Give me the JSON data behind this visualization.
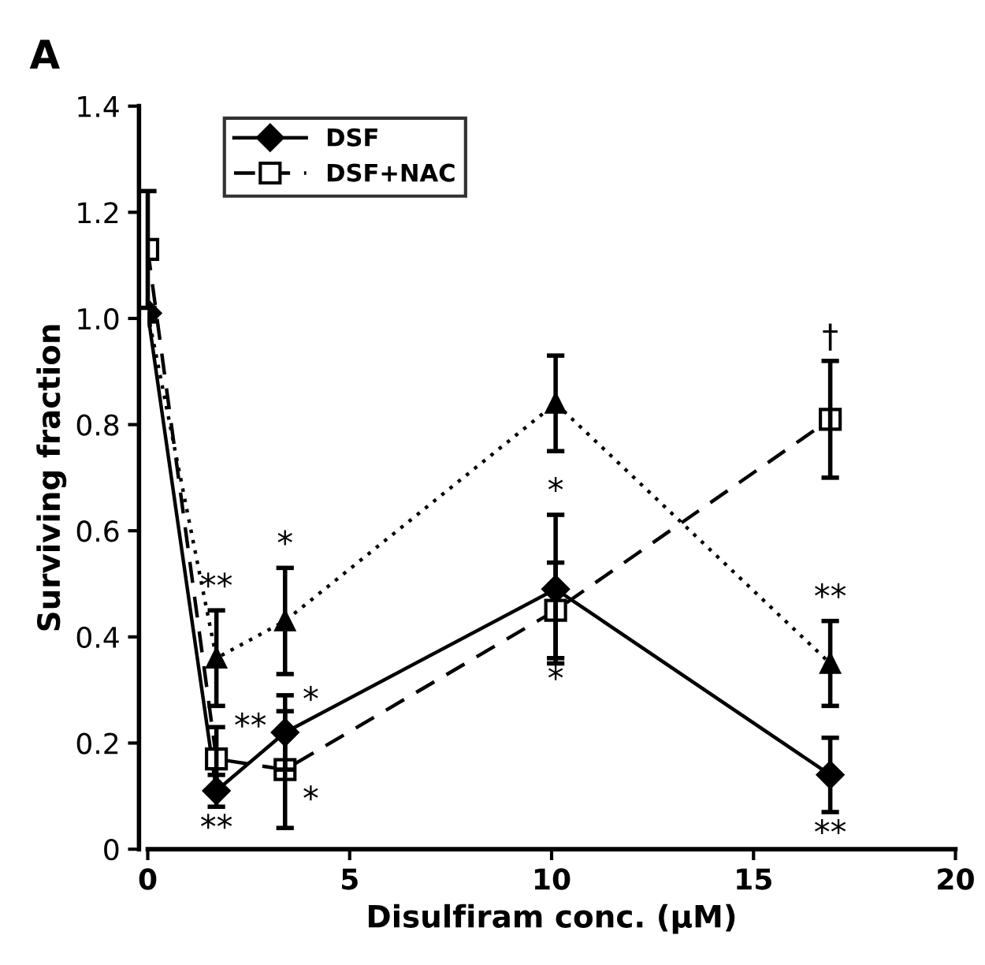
{
  "chart_data": {
    "type": "line",
    "title": "A",
    "xlabel": "Disulfiram conc. (µM)",
    "ylabel": "Surviving fraction",
    "x": [
      0,
      1.7,
      3.4,
      10.1,
      16.9
    ],
    "xlim": [
      0,
      20
    ],
    "xticks": [
      0,
      5,
      10,
      15,
      20
    ],
    "ylim": [
      0,
      1.4
    ],
    "yticks": [
      0,
      0.2,
      0.4,
      0.6,
      0.8,
      {
        "value": 1,
        "label": "1.0"
      },
      1.2,
      1.4
    ],
    "grid": false,
    "legend": "top left",
    "series": [
      {
        "name": "DSF",
        "color": "#000000",
        "marker": "diamond",
        "line_style": "solid",
        "values": [
          1.01,
          0.11,
          0.22,
          0.49,
          0.14
        ],
        "errors": [
          null,
          0.03,
          0.07,
          0.14,
          0.07
        ]
      },
      {
        "color": "#000000",
        "marker": "triangle",
        "line_style": "dotted",
        "values": [
          1.01,
          0.36,
          0.43,
          0.84,
          0.35
        ],
        "errors": [
          null,
          0.09,
          0.1,
          0.09,
          0.08
        ]
      },
      {
        "name": "DSF+NAC",
        "color": "#000000",
        "marker": "square",
        "line_style": "dashed",
        "values": [
          1.13,
          0.17,
          0.15,
          0.45,
          0.81
        ],
        "errors": [
          0.11,
          0.06,
          0.11,
          0.09,
          0.11
        ]
      }
    ],
    "annotations": [
      {
        "text": "**",
        "x": 1.7,
        "y": 0.45
      },
      {
        "text": "**",
        "x": 1.7,
        "y": 0.17
      },
      {
        "text": "**",
        "x": 1.7,
        "y": 0.08
      },
      {
        "text": "*",
        "x": 3.4,
        "y": 0.53
      },
      {
        "text": "*",
        "x": 3.4,
        "y": 0.22
      },
      {
        "text": "*",
        "x": 3.4,
        "y": 0.15
      },
      {
        "text": "*",
        "x": 10.1,
        "y": 0.63
      },
      {
        "text": "*",
        "x": 10.1,
        "y": 0.36
      },
      {
        "text": "†",
        "x": 16.9,
        "y": 0.92
      },
      {
        "text": "**",
        "x": 16.9,
        "y": 0.43
      },
      {
        "text": "**",
        "x": 16.9,
        "y": 0.07
      }
    ]
  }
}
